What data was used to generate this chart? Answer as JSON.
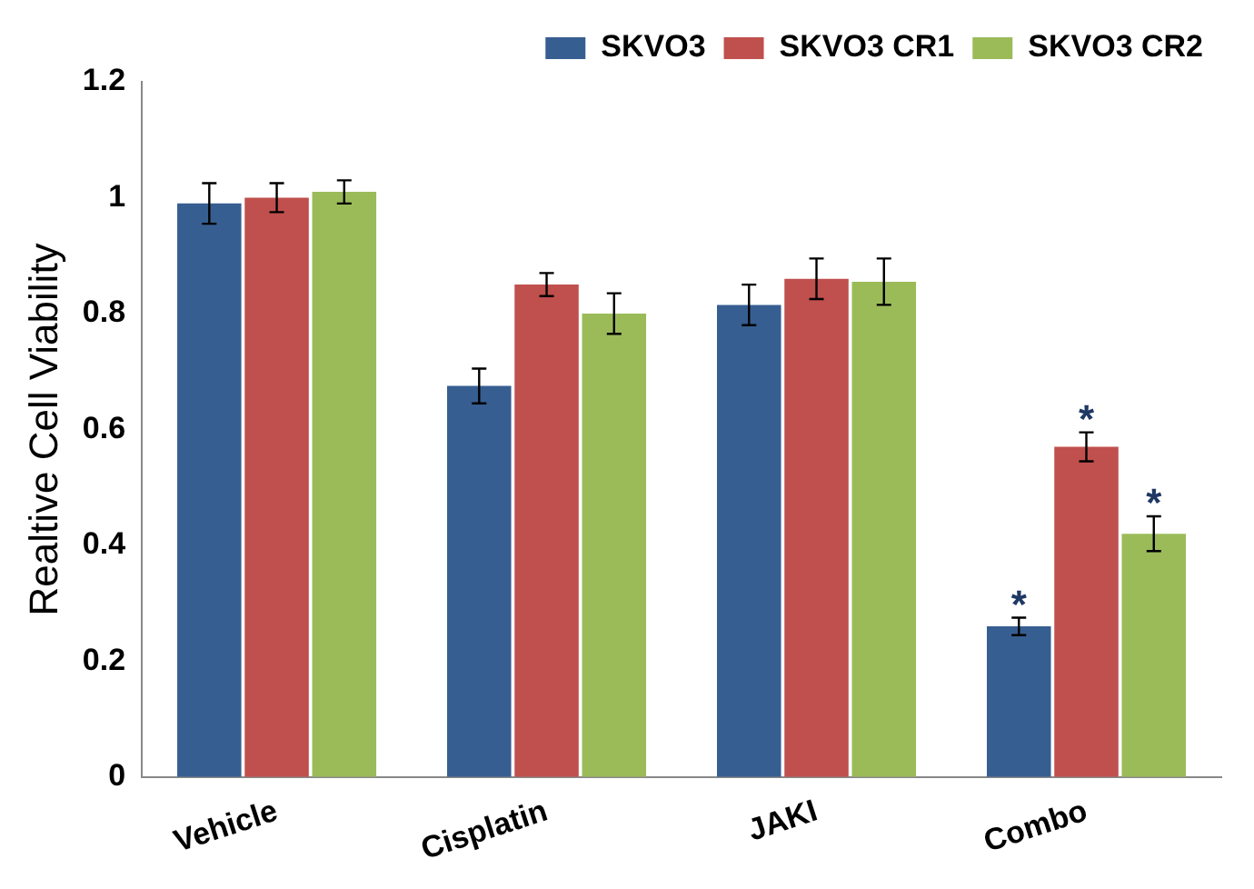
{
  "chart_data": {
    "type": "bar",
    "ylabel": "Realtive Cell Viability",
    "categories": [
      "Vehicle",
      "Cisplatin",
      "JAKI",
      "Combo"
    ],
    "series": [
      {
        "name": "SKVO3",
        "color": "#375e91",
        "values": [
          0.99,
          0.675,
          0.815,
          0.26
        ],
        "errors": [
          0.035,
          0.03,
          0.035,
          0.015
        ]
      },
      {
        "name": "SKVO3 CR1",
        "color": "#c0504d",
        "values": [
          1.0,
          0.85,
          0.86,
          0.57
        ],
        "errors": [
          0.025,
          0.02,
          0.035,
          0.025
        ]
      },
      {
        "name": "SKVO3 CR2",
        "color": "#9bbb59",
        "values": [
          1.01,
          0.8,
          0.855,
          0.42
        ],
        "errors": [
          0.02,
          0.035,
          0.04,
          0.03
        ]
      }
    ],
    "ylim": [
      0,
      1.2
    ],
    "yticks": [
      0,
      0.2,
      0.4,
      0.6,
      0.8,
      1,
      1.2
    ],
    "grid": false,
    "legend": "top right",
    "annotations": [
      "*",
      "*",
      "*"
    ]
  }
}
